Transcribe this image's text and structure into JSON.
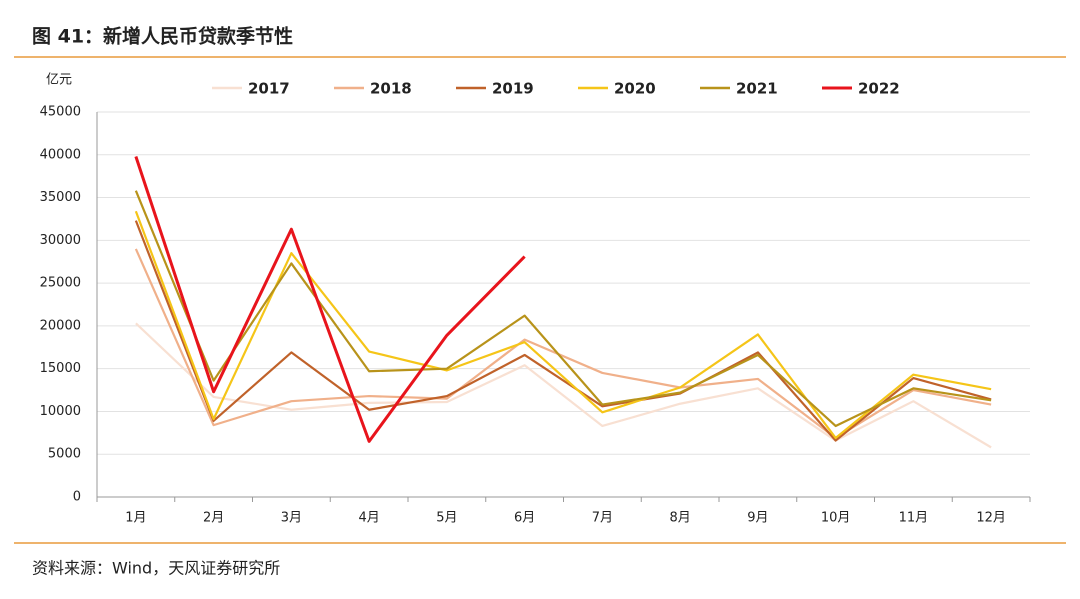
{
  "chart_data": {
    "type": "line",
    "title": "图 41：新增人民币贷款季节性",
    "y_label": "亿元",
    "source": "资料来源：Wind，天风证券研究所",
    "categories": [
      "1月",
      "2月",
      "3月",
      "4月",
      "5月",
      "6月",
      "7月",
      "8月",
      "9月",
      "10月",
      "11月",
      "12月"
    ],
    "ylim": [
      0,
      45000
    ],
    "yticks": [
      0,
      5000,
      10000,
      15000,
      20000,
      25000,
      30000,
      35000,
      40000,
      45000
    ],
    "grid": true,
    "legend": "top",
    "series": [
      {
        "name": "2017",
        "color": "#f8e0d2",
        "values": [
          20300,
          11700,
          10200,
          11000,
          11100,
          15400,
          8300,
          10900,
          12700,
          6600,
          11200,
          5800
        ]
      },
      {
        "name": "2018",
        "color": "#f0b08a",
        "values": [
          29000,
          8400,
          11200,
          11800,
          11500,
          18400,
          14500,
          12800,
          13800,
          6900,
          12500,
          10800
        ]
      },
      {
        "name": "2019",
        "color": "#c0622a",
        "values": [
          32300,
          8900,
          16900,
          10200,
          11800,
          16600,
          10600,
          12100,
          16900,
          6600,
          13900,
          11400
        ]
      },
      {
        "name": "2020",
        "color": "#f5c518",
        "values": [
          33400,
          9100,
          28500,
          17000,
          14800,
          18100,
          9900,
          12800,
          19000,
          6900,
          14300,
          12600
        ]
      },
      {
        "name": "2021",
        "color": "#b8931a",
        "values": [
          35800,
          13600,
          27300,
          14700,
          15000,
          21200,
          10800,
          12200,
          16600,
          8300,
          12700,
          11300
        ]
      },
      {
        "name": "2022",
        "color": "#e8141c",
        "values": [
          39800,
          12300,
          31300,
          6500,
          18900,
          28100,
          null,
          null,
          null,
          null,
          null,
          null
        ]
      }
    ]
  }
}
